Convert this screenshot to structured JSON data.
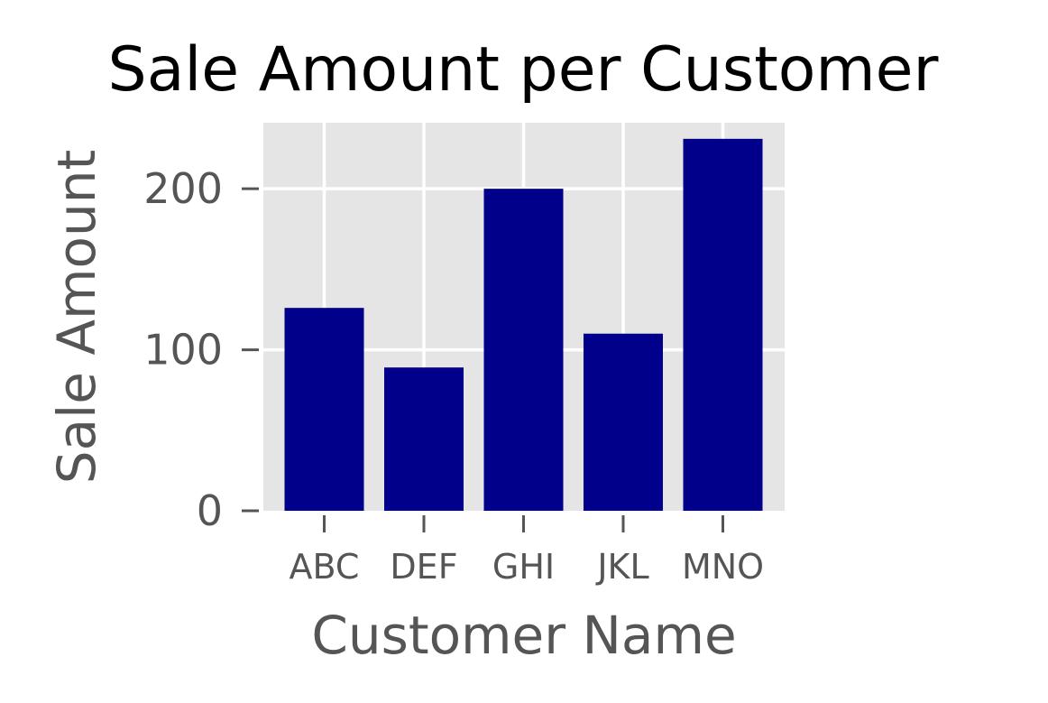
{
  "chart_data": {
    "type": "bar",
    "title": "Sale Amount per Customer",
    "xlabel": "Customer Name",
    "ylabel": "Sale Amount",
    "categories": [
      "ABC",
      "DEF",
      "GHI",
      "JKL",
      "MNO"
    ],
    "values": [
      126,
      89,
      200,
      110,
      231
    ],
    "ylim": [
      0,
      241
    ],
    "yticks": [
      0,
      100,
      200
    ],
    "grid": true,
    "style": "ggplot",
    "colors": {
      "bar": "#00008b",
      "plot_background": "#e5e5e5",
      "grid": "#ffffff",
      "tick_text": "#555555",
      "title_text": "#000000"
    }
  }
}
